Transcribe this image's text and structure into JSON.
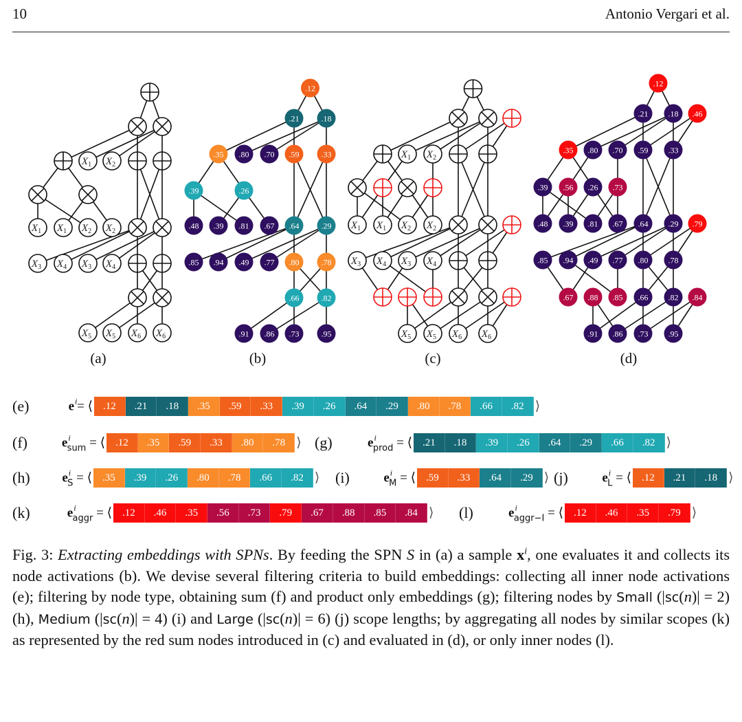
{
  "header": {
    "page_number": "10",
    "running_head": "Antonio Vergari et al."
  },
  "colors": {
    "dark_orange": "#f2611c",
    "light_orange": "#f98b2b",
    "dark_teal": "#166673",
    "mid_teal": "#1b7f8c",
    "light_teal": "#20a8b3",
    "purple": "#2f0f5f",
    "red": "#fa0c0c",
    "crimson": "#b50b45"
  },
  "panels": {
    "a": {
      "caption": "(a)",
      "nodes": [
        {
          "type": "sum"
        },
        {
          "type": "prod"
        },
        {
          "type": "prod"
        },
        null,
        {
          "type": "sum"
        },
        {
          "type": "leaf",
          "var": "X",
          "sub": "1"
        },
        {
          "type": "leaf",
          "var": "X",
          "sub": "2"
        },
        {
          "type": "sum"
        },
        {
          "type": "sum"
        },
        {
          "type": "prod"
        },
        null,
        {
          "type": "prod"
        },
        null,
        {
          "type": "leaf",
          "var": "X",
          "sub": "1"
        },
        {
          "type": "leaf",
          "var": "X",
          "sub": "1"
        },
        {
          "type": "leaf",
          "var": "X",
          "sub": "2"
        },
        {
          "type": "leaf",
          "var": "X",
          "sub": "2"
        },
        {
          "type": "prod"
        },
        {
          "type": "prod"
        },
        null,
        {
          "type": "leaf",
          "var": "X",
          "sub": "3"
        },
        {
          "type": "leaf",
          "var": "X",
          "sub": "4"
        },
        {
          "type": "leaf",
          "var": "X",
          "sub": "3"
        },
        {
          "type": "leaf",
          "var": "X",
          "sub": "4"
        },
        {
          "type": "sum"
        },
        {
          "type": "sum"
        },
        null,
        null,
        null,
        {
          "type": "prod"
        },
        {
          "type": "prod"
        },
        null,
        {
          "type": "leaf",
          "var": "X",
          "sub": "5"
        },
        {
          "type": "leaf",
          "var": "X",
          "sub": "5"
        },
        {
          "type": "leaf",
          "var": "X",
          "sub": "6"
        },
        {
          "type": "leaf",
          "var": "X",
          "sub": "6"
        }
      ]
    },
    "b": {
      "caption": "(b)",
      "nodes": [
        {
          "value": ".12",
          "color": "#f2611c"
        },
        {
          "value": ".21",
          "color": "#166673"
        },
        {
          "value": ".18",
          "color": "#166673"
        },
        null,
        {
          "value": ".35",
          "color": "#f98b2b"
        },
        {
          "value": ".80",
          "color": "#2f0f5f"
        },
        {
          "value": ".70",
          "color": "#2f0f5f"
        },
        {
          "value": ".59",
          "color": "#f2611c"
        },
        {
          "value": ".33",
          "color": "#f2611c"
        },
        {
          "value": ".39",
          "color": "#20a8b3"
        },
        null,
        {
          "value": ".26",
          "color": "#20a8b3"
        },
        null,
        {
          "value": ".48",
          "color": "#2f0f5f"
        },
        {
          "value": ".39",
          "color": "#2f0f5f"
        },
        {
          "value": ".81",
          "color": "#2f0f5f"
        },
        {
          "value": ".67",
          "color": "#2f0f5f"
        },
        {
          "value": ".64",
          "color": "#1b7f8c"
        },
        {
          "value": ".29",
          "color": "#1b7f8c"
        },
        null,
        {
          "value": ".85",
          "color": "#2f0f5f"
        },
        {
          "value": ".94",
          "color": "#2f0f5f"
        },
        {
          "value": ".49",
          "color": "#2f0f5f"
        },
        {
          "value": ".77",
          "color": "#2f0f5f"
        },
        {
          "value": ".80",
          "color": "#f98b2b"
        },
        {
          "value": ".78",
          "color": "#f98b2b"
        },
        null,
        null,
        null,
        {
          "value": ".66",
          "color": "#20a8b3"
        },
        {
          "value": ".82",
          "color": "#20a8b3"
        },
        null,
        {
          "value": ".91",
          "color": "#2f0f5f"
        },
        {
          "value": ".86",
          "color": "#2f0f5f"
        },
        {
          "value": ".73",
          "color": "#2f0f5f"
        },
        {
          "value": ".95",
          "color": "#2f0f5f"
        }
      ]
    },
    "c": {
      "caption": "(c)",
      "nodes": [
        {
          "type": "sum"
        },
        {
          "type": "prod"
        },
        {
          "type": "prod"
        },
        {
          "type": "aggr-sum"
        },
        {
          "type": "sum"
        },
        {
          "type": "leaf",
          "var": "X",
          "sub": "1"
        },
        {
          "type": "leaf",
          "var": "X",
          "sub": "2"
        },
        {
          "type": "sum"
        },
        {
          "type": "sum"
        },
        {
          "type": "prod"
        },
        {
          "type": "aggr-sum"
        },
        {
          "type": "prod"
        },
        {
          "type": "aggr-sum"
        },
        {
          "type": "leaf",
          "var": "X",
          "sub": "1"
        },
        {
          "type": "leaf",
          "var": "X",
          "sub": "1"
        },
        {
          "type": "leaf",
          "var": "X",
          "sub": "2"
        },
        {
          "type": "leaf",
          "var": "X",
          "sub": "2"
        },
        {
          "type": "prod"
        },
        {
          "type": "prod"
        },
        {
          "type": "aggr-sum"
        },
        {
          "type": "leaf",
          "var": "X",
          "sub": "3"
        },
        {
          "type": "leaf",
          "var": "X",
          "sub": "4"
        },
        {
          "type": "leaf",
          "var": "X",
          "sub": "3"
        },
        {
          "type": "leaf",
          "var": "X",
          "sub": "4"
        },
        {
          "type": "sum"
        },
        {
          "type": "sum"
        },
        {
          "type": "aggr-sum"
        },
        {
          "type": "aggr-sum"
        },
        {
          "type": "aggr-sum"
        },
        {
          "type": "prod"
        },
        {
          "type": "prod"
        },
        {
          "type": "aggr-sum"
        },
        {
          "type": "leaf",
          "var": "X",
          "sub": "5"
        },
        {
          "type": "leaf",
          "var": "X",
          "sub": "5"
        },
        {
          "type": "leaf",
          "var": "X",
          "sub": "6"
        },
        {
          "type": "leaf",
          "var": "X",
          "sub": "6"
        }
      ]
    },
    "d": {
      "caption": "(d)",
      "nodes": [
        {
          "value": ".12",
          "color": "#fa0c0c"
        },
        {
          "value": ".21",
          "color": "#2f0f5f"
        },
        {
          "value": ".18",
          "color": "#2f0f5f"
        },
        {
          "value": ".46",
          "color": "#fa0c0c"
        },
        {
          "value": ".35",
          "color": "#fa0c0c"
        },
        {
          "value": ".80",
          "color": "#2f0f5f"
        },
        {
          "value": ".70",
          "color": "#2f0f5f"
        },
        {
          "value": ".59",
          "color": "#2f0f5f"
        },
        {
          "value": ".33",
          "color": "#2f0f5f"
        },
        {
          "value": ".39",
          "color": "#2f0f5f"
        },
        {
          "value": ".56",
          "color": "#b50b45"
        },
        {
          "value": ".26",
          "color": "#2f0f5f"
        },
        {
          "value": ".73",
          "color": "#b50b45"
        },
        {
          "value": ".48",
          "color": "#2f0f5f"
        },
        {
          "value": ".39",
          "color": "#2f0f5f"
        },
        {
          "value": ".81",
          "color": "#2f0f5f"
        },
        {
          "value": ".67",
          "color": "#2f0f5f"
        },
        {
          "value": ".64",
          "color": "#2f0f5f"
        },
        {
          "value": ".29",
          "color": "#2f0f5f"
        },
        {
          "value": ".79",
          "color": "#fa0c0c"
        },
        {
          "value": ".85",
          "color": "#2f0f5f"
        },
        {
          "value": ".94",
          "color": "#2f0f5f"
        },
        {
          "value": ".49",
          "color": "#2f0f5f"
        },
        {
          "value": ".77",
          "color": "#2f0f5f"
        },
        {
          "value": ".80",
          "color": "#2f0f5f"
        },
        {
          "value": ".78",
          "color": "#2f0f5f"
        },
        {
          "value": ".67",
          "color": "#b50b45"
        },
        {
          "value": ".88",
          "color": "#b50b45"
        },
        {
          "value": ".85",
          "color": "#b50b45"
        },
        {
          "value": ".66",
          "color": "#2f0f5f"
        },
        {
          "value": ".82",
          "color": "#2f0f5f"
        },
        {
          "value": ".84",
          "color": "#b50b45"
        },
        {
          "value": ".91",
          "color": "#2f0f5f"
        },
        {
          "value": ".86",
          "color": "#2f0f5f"
        },
        {
          "value": ".73",
          "color": "#2f0f5f"
        },
        {
          "value": ".95",
          "color": "#2f0f5f"
        }
      ]
    }
  },
  "edges": [
    [
      0,
      1
    ],
    [
      0,
      2
    ],
    [
      1,
      4
    ],
    [
      1,
      7
    ],
    [
      2,
      5
    ],
    [
      2,
      6
    ],
    [
      2,
      8
    ],
    [
      4,
      9
    ],
    [
      4,
      11
    ],
    [
      9,
      13
    ],
    [
      9,
      15
    ],
    [
      11,
      14
    ],
    [
      11,
      16
    ],
    [
      7,
      17
    ],
    [
      7,
      18
    ],
    [
      8,
      17
    ],
    [
      8,
      18
    ],
    [
      17,
      20
    ],
    [
      17,
      21
    ],
    [
      18,
      22
    ],
    [
      18,
      23
    ],
    [
      17,
      24
    ],
    [
      18,
      25
    ],
    [
      24,
      29
    ],
    [
      24,
      30
    ],
    [
      25,
      29
    ],
    [
      25,
      30
    ],
    [
      29,
      32
    ],
    [
      29,
      34
    ],
    [
      30,
      33
    ],
    [
      30,
      35
    ]
  ],
  "aggr_edges": [
    [
      3,
      7
    ],
    [
      3,
      8
    ],
    [
      10,
      13
    ],
    [
      10,
      14
    ],
    [
      5,
      10
    ],
    [
      12,
      15
    ],
    [
      12,
      16
    ],
    [
      6,
      12
    ],
    [
      19,
      24
    ],
    [
      19,
      25
    ],
    [
      26,
      20
    ],
    [
      26,
      22
    ],
    [
      28,
      21
    ],
    [
      28,
      23
    ],
    [
      27,
      32
    ],
    [
      27,
      33
    ],
    [
      31,
      34
    ],
    [
      31,
      35
    ]
  ],
  "embeddings": [
    {
      "tag": "(e)",
      "name": "e",
      "sup": "i",
      "sub": "",
      "cells": [
        {
          "v": ".12",
          "c": "#f2611c"
        },
        {
          "v": ".21",
          "c": "#166673"
        },
        {
          "v": ".18",
          "c": "#166673"
        },
        {
          "v": ".35",
          "c": "#f98b2b"
        },
        {
          "v": ".59",
          "c": "#f2611c"
        },
        {
          "v": ".33",
          "c": "#f2611c"
        },
        {
          "v": ".39",
          "c": "#20a8b3"
        },
        {
          "v": ".26",
          "c": "#20a8b3"
        },
        {
          "v": ".64",
          "c": "#1b7f8c"
        },
        {
          "v": ".29",
          "c": "#1b7f8c"
        },
        {
          "v": ".80",
          "c": "#f98b2b"
        },
        {
          "v": ".78",
          "c": "#f98b2b"
        },
        {
          "v": ".66",
          "c": "#20a8b3"
        },
        {
          "v": ".82",
          "c": "#20a8b3"
        }
      ]
    },
    {
      "tag": "(f)",
      "name": "e",
      "sup": "i",
      "sub": "sum",
      "cells": [
        {
          "v": ".12",
          "c": "#f2611c"
        },
        {
          "v": ".35",
          "c": "#f98b2b"
        },
        {
          "v": ".59",
          "c": "#f2611c"
        },
        {
          "v": ".33",
          "c": "#f2611c"
        },
        {
          "v": ".80",
          "c": "#f98b2b"
        },
        {
          "v": ".78",
          "c": "#f98b2b"
        }
      ]
    },
    {
      "tag": "(g)",
      "name": "e",
      "sup": "i",
      "sub": "prod",
      "cells": [
        {
          "v": ".21",
          "c": "#166673"
        },
        {
          "v": ".18",
          "c": "#166673"
        },
        {
          "v": ".39",
          "c": "#20a8b3"
        },
        {
          "v": ".26",
          "c": "#20a8b3"
        },
        {
          "v": ".64",
          "c": "#1b7f8c"
        },
        {
          "v": ".29",
          "c": "#1b7f8c"
        },
        {
          "v": ".66",
          "c": "#20a8b3"
        },
        {
          "v": ".82",
          "c": "#20a8b3"
        }
      ]
    },
    {
      "tag": "(h)",
      "name": "e",
      "sup": "i",
      "sub": "S",
      "cells": [
        {
          "v": ".35",
          "c": "#f98b2b"
        },
        {
          "v": ".39",
          "c": "#20a8b3"
        },
        {
          "v": ".26",
          "c": "#20a8b3"
        },
        {
          "v": ".80",
          "c": "#f98b2b"
        },
        {
          "v": ".78",
          "c": "#f98b2b"
        },
        {
          "v": ".66",
          "c": "#20a8b3"
        },
        {
          "v": ".82",
          "c": "#20a8b3"
        }
      ]
    },
    {
      "tag": "(i)",
      "name": "e",
      "sup": "i",
      "sub": "M",
      "cells": [
        {
          "v": ".59",
          "c": "#f2611c"
        },
        {
          "v": ".33",
          "c": "#f2611c"
        },
        {
          "v": ".64",
          "c": "#1b7f8c"
        },
        {
          "v": ".29",
          "c": "#1b7f8c"
        }
      ]
    },
    {
      "tag": "(j)",
      "name": "e",
      "sup": "i",
      "sub": "L",
      "cells": [
        {
          "v": ".12",
          "c": "#f2611c"
        },
        {
          "v": ".21",
          "c": "#166673"
        },
        {
          "v": ".18",
          "c": "#166673"
        }
      ]
    },
    {
      "tag": "(k)",
      "name": "e",
      "sup": "i",
      "sub": "aggr",
      "cells": [
        {
          "v": ".12",
          "c": "#fa0c0c"
        },
        {
          "v": ".46",
          "c": "#fa0c0c"
        },
        {
          "v": ".35",
          "c": "#fa0c0c"
        },
        {
          "v": ".56",
          "c": "#b50b45"
        },
        {
          "v": ".73",
          "c": "#b50b45"
        },
        {
          "v": ".79",
          "c": "#fa0c0c"
        },
        {
          "v": ".67",
          "c": "#b50b45"
        },
        {
          "v": ".88",
          "c": "#b50b45"
        },
        {
          "v": ".85",
          "c": "#b50b45"
        },
        {
          "v": ".84",
          "c": "#b50b45"
        }
      ]
    },
    {
      "tag": "(l)",
      "name": "e",
      "sup": "i",
      "sub": "aggr−I",
      "cells": [
        {
          "v": ".12",
          "c": "#fa0c0c"
        },
        {
          "v": ".46",
          "c": "#fa0c0c"
        },
        {
          "v": ".35",
          "c": "#fa0c0c"
        },
        {
          "v": ".79",
          "c": "#fa0c0c"
        }
      ]
    }
  ],
  "caption": [
    {
      "t": "Fig. 3: ",
      "s": ""
    },
    {
      "t": "Extracting embeddings with SPNs",
      "s": "it"
    },
    {
      "t": ". By feeding the SPN ",
      "s": ""
    },
    {
      "t": "S",
      "s": "it"
    },
    {
      "t": " in (a) a sample ",
      "s": ""
    },
    {
      "t": "x",
      "s": "bf"
    },
    {
      "t": "i",
      "s": "sup"
    },
    {
      "t": ", one evaluates it and collects its node activations (b). We devise several filtering criteria to build embeddings: collecting all inner node activations (e); filtering by node type, obtaining sum (f) and product only embeddings (g); filtering nodes by ",
      "s": ""
    },
    {
      "t": "Small",
      "s": "sf"
    },
    {
      "t": " (|",
      "s": ""
    },
    {
      "t": "sc",
      "s": "sf"
    },
    {
      "t": "(",
      "s": ""
    },
    {
      "t": "n",
      "s": "it"
    },
    {
      "t": ")| = 2) (h), ",
      "s": ""
    },
    {
      "t": "Medium",
      "s": "sf"
    },
    {
      "t": " (|",
      "s": ""
    },
    {
      "t": "sc",
      "s": "sf"
    },
    {
      "t": "(",
      "s": ""
    },
    {
      "t": "n",
      "s": "it"
    },
    {
      "t": ")| = 4) (i) and ",
      "s": ""
    },
    {
      "t": "Large",
      "s": "sf"
    },
    {
      "t": " (|",
      "s": ""
    },
    {
      "t": "sc",
      "s": "sf"
    },
    {
      "t": "(",
      "s": ""
    },
    {
      "t": "n",
      "s": "it"
    },
    {
      "t": ")| = 6) (j) scope lengths; by aggregating all nodes by similar scopes (k) as represented by the red sum nodes introduced in (c) and evaluated in (d), or only inner nodes (l).",
      "s": ""
    }
  ]
}
